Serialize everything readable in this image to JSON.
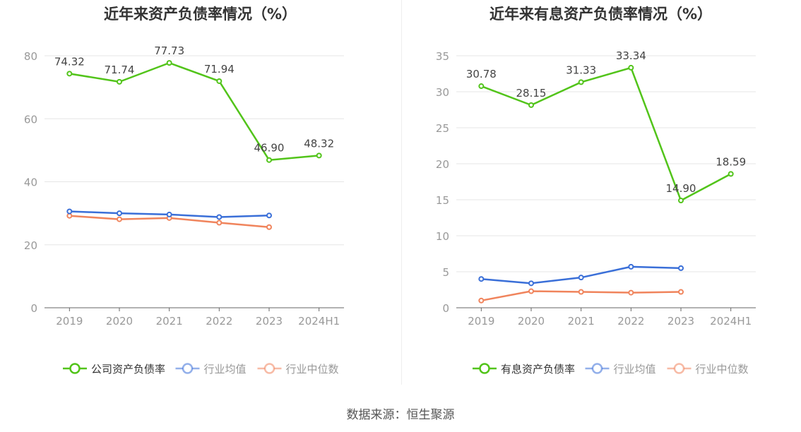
{
  "source_label": "数据来源：恒生聚源",
  "chart_data": [
    {
      "type": "line",
      "title": "近年来资产负债率情况（%）",
      "categories": [
        "2019",
        "2020",
        "2021",
        "2022",
        "2023",
        "2024H1"
      ],
      "ylim": [
        0,
        80
      ],
      "yticks": [
        0,
        20,
        40,
        60,
        80
      ],
      "grid": true,
      "legend_position": "bottom",
      "series": [
        {
          "name": "公司资产负债率",
          "color": "#52c41a",
          "values": [
            74.32,
            71.74,
            77.73,
            71.94,
            46.9,
            48.32
          ],
          "labels": [
            "74.32",
            "71.74",
            "77.73",
            "71.94",
            "46.90",
            "48.32"
          ]
        },
        {
          "name": "行业均值",
          "color": "#3a6fd8",
          "values": [
            30.6,
            30.0,
            29.6,
            28.8,
            29.3,
            null
          ]
        },
        {
          "name": "行业中位数",
          "color": "#f0845c",
          "values": [
            29.2,
            28.1,
            28.5,
            27.0,
            25.6,
            null
          ]
        }
      ]
    },
    {
      "type": "line",
      "title": "近年来有息资产负债率情况（%）",
      "categories": [
        "2019",
        "2020",
        "2021",
        "2022",
        "2023",
        "2024H1"
      ],
      "ylim": [
        0,
        35
      ],
      "yticks": [
        0,
        5,
        10,
        15,
        20,
        25,
        30,
        35
      ],
      "grid": true,
      "legend_position": "bottom",
      "series": [
        {
          "name": "有息资产负债率",
          "color": "#52c41a",
          "values": [
            30.78,
            28.15,
            31.33,
            33.34,
            14.9,
            18.59
          ],
          "labels": [
            "30.78",
            "28.15",
            "31.33",
            "33.34",
            "14.90",
            "18.59"
          ]
        },
        {
          "name": "行业均值",
          "color": "#3a6fd8",
          "values": [
            4.0,
            3.4,
            4.2,
            5.7,
            5.5,
            null
          ]
        },
        {
          "name": "行业中位数",
          "color": "#f0845c",
          "values": [
            1.0,
            2.3,
            2.2,
            2.1,
            2.2,
            null
          ]
        }
      ]
    }
  ]
}
